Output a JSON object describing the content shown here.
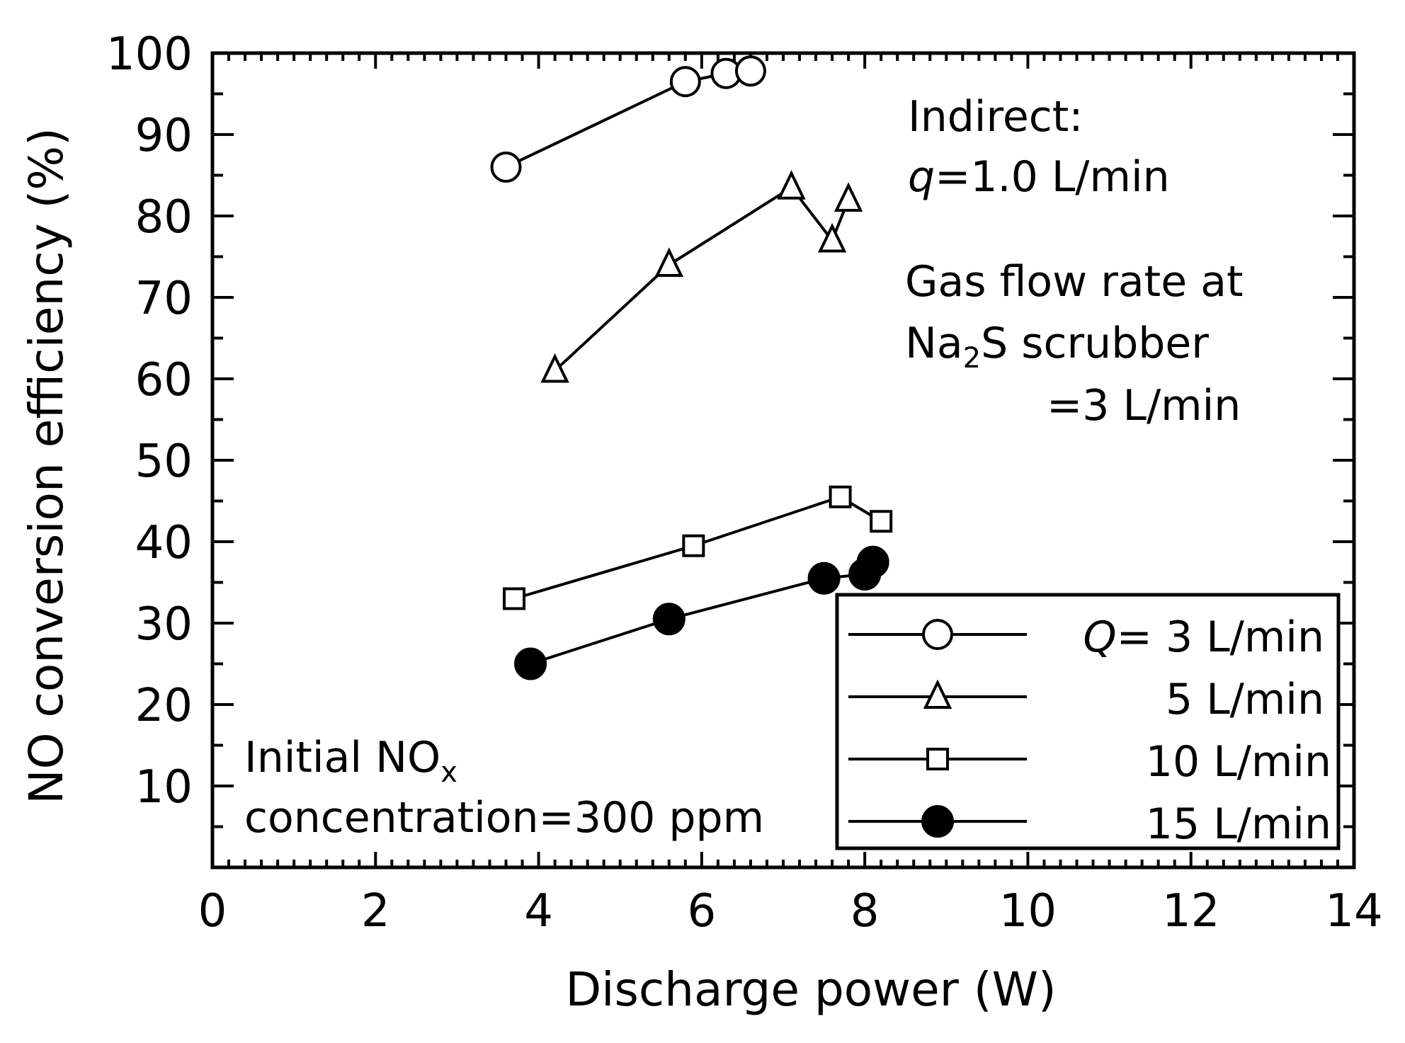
{
  "chart_data": {
    "type": "line",
    "xlabel": "Discharge power (W)",
    "ylabel": "NO conversion efficiency (%)",
    "xlim": [
      0,
      14
    ],
    "ylim": [
      0,
      100
    ],
    "xticks": [
      0,
      2,
      4,
      6,
      8,
      10,
      12,
      14
    ],
    "yticks": [
      10,
      20,
      30,
      40,
      50,
      60,
      70,
      80,
      90,
      100
    ],
    "series": [
      {
        "name": "3 L/min",
        "legend_prefix": "Q",
        "legend_eq": "=",
        "legend_value": " 3 L/min",
        "marker": "open-circle",
        "x": [
          3.6,
          5.8,
          6.3,
          6.6
        ],
        "y": [
          86,
          96.5,
          97.5,
          97.8
        ]
      },
      {
        "name": "5 L/min",
        "legend_value": "5 L/min",
        "marker": "open-triangle",
        "x": [
          4.2,
          5.6,
          7.1,
          7.6,
          7.8
        ],
        "y": [
          61,
          74,
          83.5,
          77,
          82
        ]
      },
      {
        "name": "10 L/min",
        "legend_value": "10 L/min",
        "marker": "open-square",
        "x": [
          3.7,
          5.9,
          7.7,
          8.2
        ],
        "y": [
          33,
          39.5,
          45.5,
          42.5
        ]
      },
      {
        "name": "15 L/min",
        "legend_value": "15 L/min",
        "marker": "filled-circle",
        "x": [
          3.9,
          5.6,
          7.5,
          8.0,
          8.1
        ],
        "y": [
          25,
          30.5,
          35.5,
          36,
          37.5
        ]
      }
    ],
    "annotations": {
      "indirect_line1": "Indirect:",
      "indirect_q": "q",
      "indirect_rest": "=1.0 L/min",
      "gas_line1": "Gas flow rate at",
      "gas_line2_a": "Na",
      "gas_line2_sub": "2",
      "gas_line2_b": "S scrubber",
      "gas_line3": "=3 L/min",
      "initial_line1_a": "Initial NO",
      "initial_line1_sub": "x",
      "initial_line2": "concentration=300 ppm"
    },
    "legend_position": "bottom-right",
    "colors": {
      "line": "#000000",
      "background": "#ffffff"
    }
  }
}
